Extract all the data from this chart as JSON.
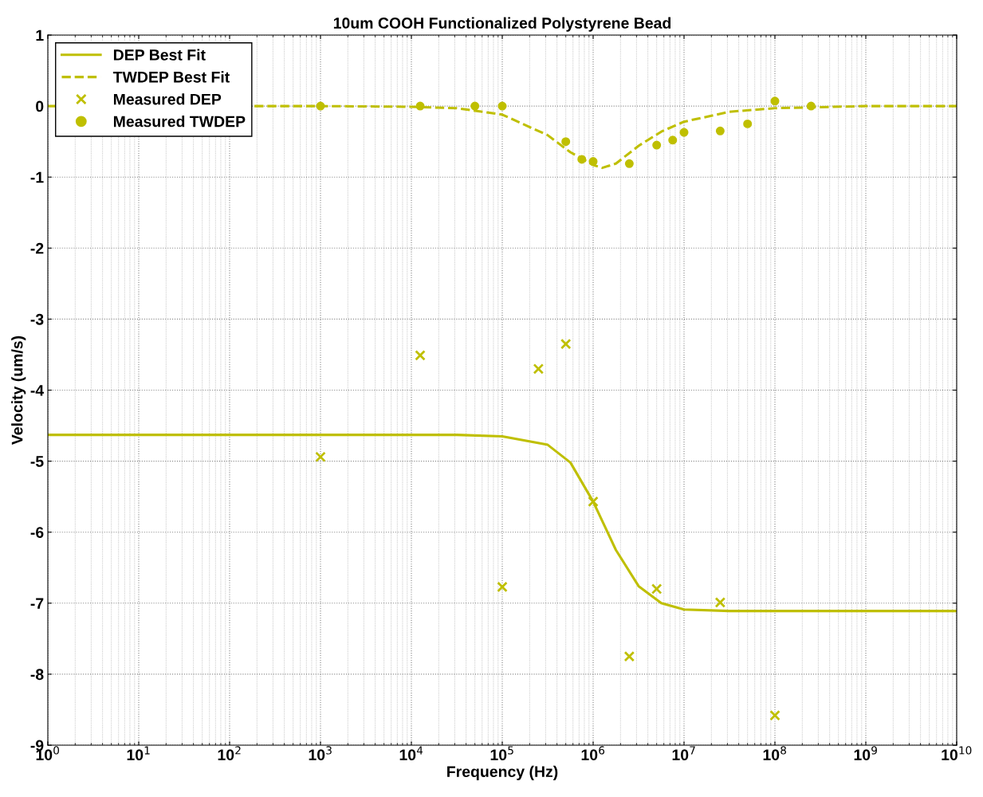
{
  "chart_data": {
    "type": "line",
    "title": "10um COOH Functionalized Polystyrene Bead",
    "xlabel": "Frequency (Hz)",
    "ylabel": "Velocity (um/s)",
    "log": "x",
    "grid": true,
    "legend": "top left",
    "xlim": [
      1,
      10000000000
    ],
    "ylim": [
      -9,
      1
    ],
    "xticks": [
      {
        "value": 1,
        "label": "10$^{0}$"
      },
      {
        "value": 10,
        "label": "10$^{1}$"
      },
      {
        "value": 100,
        "label": "10$^{2}$"
      },
      {
        "value": 1000,
        "label": "10$^{3}$"
      },
      {
        "value": 10000,
        "label": "10$^{4}$"
      },
      {
        "value": 100000,
        "label": "10$^{5}$"
      },
      {
        "value": 1000000,
        "label": "10$^{6}$"
      },
      {
        "value": 10000000,
        "label": "10$^{7}$"
      },
      {
        "value": 100000000,
        "label": "10$^{8}$"
      },
      {
        "value": 1000000000,
        "label": "10$^{9}$"
      },
      {
        "value": 10000000000,
        "label": "10$^{10}$"
      }
    ],
    "yticks": [
      -9,
      -8,
      -7,
      -6,
      -5,
      -4,
      -3,
      -2,
      -1,
      0,
      1
    ],
    "series": [
      {
        "name": "DEP Best Fit",
        "line_style": "solid",
        "marker": "none",
        "color": "#bfbf00",
        "x": [
          1,
          10000,
          31623,
          100000,
          316228,
          562341,
          1000000,
          1778279,
          3162278,
          5623413,
          10000000,
          31622777,
          10000000000
        ],
        "values": [
          -4.63,
          -4.63,
          -4.63,
          -4.65,
          -4.77,
          -5.02,
          -5.57,
          -6.25,
          -6.76,
          -7.0,
          -7.09,
          -7.11,
          -7.11
        ]
      },
      {
        "name": "TWDEP Best Fit",
        "line_style": "dashed",
        "marker": "none",
        "color": "#bfbf00",
        "x": [
          1,
          1000,
          10000,
          31623,
          100000,
          316228,
          562341,
          1000000,
          1258925,
          1778279,
          3162278,
          5623413,
          10000000,
          31622777,
          100000000,
          1000000000,
          10000000000
        ],
        "values": [
          0,
          0,
          -0.01,
          -0.03,
          -0.12,
          -0.41,
          -0.65,
          -0.83,
          -0.87,
          -0.81,
          -0.56,
          -0.36,
          -0.22,
          -0.08,
          -0.03,
          0,
          0
        ]
      },
      {
        "name": "Measured DEP",
        "type": "scatter",
        "marker": "cross",
        "color": "#bfbf00",
        "x": [
          1000,
          12500,
          100000,
          250000,
          500000,
          1000000,
          2500000,
          5000000,
          25000000,
          100000000
        ],
        "values": [
          -4.94,
          -3.51,
          -6.77,
          -3.7,
          -3.35,
          -5.57,
          -7.75,
          -6.8,
          -6.99,
          -8.58
        ]
      },
      {
        "name": "Measured TWDEP",
        "type": "scatter",
        "marker": "circle",
        "color": "#bfbf00",
        "x": [
          1000,
          12500,
          50000,
          100000,
          500000,
          750000,
          1000000,
          2500000,
          5000000,
          7500000,
          10000000,
          25000000,
          50000000,
          100000000,
          250000000
        ],
        "values": [
          0,
          0,
          0,
          0,
          -0.5,
          -0.75,
          -0.78,
          -0.81,
          -0.55,
          -0.48,
          -0.37,
          -0.35,
          -0.25,
          0.07,
          0
        ]
      }
    ]
  }
}
